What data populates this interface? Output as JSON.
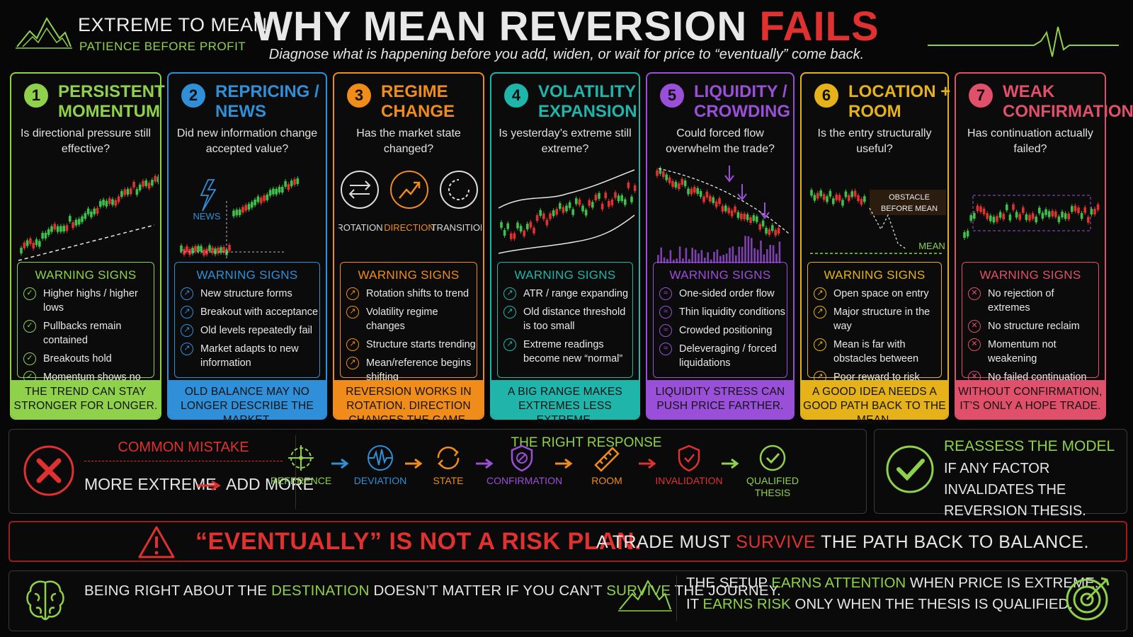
{
  "header": {
    "brand": "EXTREME TO MEAN",
    "tagline": "PATIENCE BEFORE PROFIT",
    "title_main": "WHY MEAN REVERSION ",
    "title_accent": "FAILS",
    "subtitle": "Diagnose what is happening before you add, widen, or wait for price to “eventually” come back."
  },
  "colors": {
    "green": "#8fd14a",
    "blue": "#2f8fd8",
    "orange": "#f08c1a",
    "teal": "#1fb5aa",
    "purple": "#9a4fd8",
    "gold": "#e5b21a",
    "pink": "#e0506a",
    "red": "#e03131"
  },
  "cards": [
    {
      "num": "1",
      "title": "PERSISTENT MOMENTUM",
      "question": "Is directional pressure still effective?",
      "warning_title": "WARNING SIGNS",
      "signs": [
        "Higher highs / higher lows",
        "Pullbacks remain contained",
        "Breakouts hold",
        "Momentum shows no real weakness"
      ],
      "footer": "THE TREND CAN STAY STRONGER FOR LONGER."
    },
    {
      "num": "2",
      "title": "REPRICING / NEWS",
      "question": "Did new information change accepted value?",
      "warning_title": "WARNING SIGNS",
      "signs": [
        "New structure forms",
        "Breakout with acceptance",
        "Old levels repeatedly fail",
        "Market adapts to new information"
      ],
      "footer": "OLD BALANCE MAY NO LONGER DESCRIBE THE MARKET.",
      "viz_label": "NEWS"
    },
    {
      "num": "3",
      "title": "REGIME CHANGE",
      "question": "Has the market state changed?",
      "warning_title": "WARNING SIGNS",
      "signs": [
        "Rotation shifts to trend",
        "Volatility regime changes",
        "Structure starts trending",
        "Mean/reference begins shifting"
      ],
      "footer": "REVERSION WORKS IN ROTATION. DIRECTION CHANGES THE GAME.",
      "states": [
        "ROTATION",
        "DIRECTION",
        "TRANSITION"
      ]
    },
    {
      "num": "4",
      "title": "VOLATILITY EXPANSION",
      "question": "Is yesterday’s extreme still extreme?",
      "warning_title": "WARNING SIGNS",
      "signs": [
        "ATR / range expanding",
        "Old distance threshold is too small",
        "Extreme readings become new “normal”"
      ],
      "footer": "A BIG RANGE MAKES EXTREMES LESS EXTREME."
    },
    {
      "num": "5",
      "title": "LIQUIDITY / CROWDING",
      "question": "Could forced flow overwhelm the trade?",
      "warning_title": "WARNING SIGNS",
      "signs": [
        "One-sided order flow",
        "Thin liquidity conditions",
        "Crowded positioning",
        "Deleveraging / forced liquidations"
      ],
      "footer": "LIQUIDITY STRESS CAN PUSH PRICE FARTHER."
    },
    {
      "num": "6",
      "title": "LOCATION + ROOM",
      "question": "Is the entry structurally useful?",
      "warning_title": "WARNING SIGNS",
      "signs": [
        "Open space on entry",
        "Major structure in the way",
        "Mean is far with obstacles between",
        "Poor reward to risk"
      ],
      "footer": "A GOOD IDEA NEEDS A GOOD PATH BACK TO THE MEAN.",
      "obstacle": "OBSTACLE BEFORE MEAN",
      "mean_label": "MEAN"
    },
    {
      "num": "7",
      "title": "WEAK CONFIRMATION",
      "question": "Has continuation actually failed?",
      "warning_title": "WARNING SIGNS",
      "signs": [
        "No rejection of extremes",
        "No structure reclaim",
        "Momentum not weakening",
        "No failed continuation evidence"
      ],
      "footer": "WITHOUT CONFIRMATION, IT’S ONLY A HOPE TRADE."
    }
  ],
  "mistake": {
    "title": "COMMON MISTAKE",
    "left": "MORE EXTREME",
    "right": "ADD MORE"
  },
  "response": {
    "title": "THE RIGHT RESPONSE",
    "steps": [
      "REFERENCE",
      "DEVIATION",
      "STATE",
      "CONFIRMATION",
      "ROOM",
      "INVALIDATION",
      "QUALIFIED THESIS"
    ]
  },
  "reassess": {
    "title": "REASSESS THE MODEL",
    "body": "IF ANY FACTOR INVALIDATES THE REVERSION THESIS."
  },
  "alert": {
    "part1": "“EVENTUALLY” IS NOT A RISK PLAN.",
    "part2a": "A TRADE MUST ",
    "part2b": "SURVIVE",
    "part2c": " THE PATH BACK TO BALANCE."
  },
  "footer_left": {
    "a": "BEING RIGHT ABOUT THE ",
    "b": "DESTINATION",
    "c": " DOESN’T MATTER IF YOU CAN’T ",
    "d": "SURVIVE",
    "e": " THE JOURNEY."
  },
  "footer_right": {
    "l1a": "THE SETUP ",
    "l1b": "EARNS ATTENTION",
    "l1c": " WHEN PRICE IS EXTREME.",
    "l2a": "IT ",
    "l2b": "EARNS RISK",
    "l2c": " ONLY WHEN THE THESIS IS QUALIFIED."
  }
}
